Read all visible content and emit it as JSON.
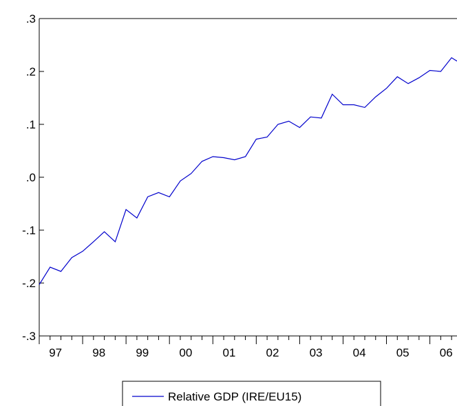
{
  "chart_data": {
    "type": "line",
    "title": "",
    "xlabel": "",
    "ylabel": "",
    "ylim": [
      -0.3,
      0.3
    ],
    "yticks": [
      {
        "value": 0.3,
        "label": ".3"
      },
      {
        "value": 0.2,
        "label": ".2"
      },
      {
        "value": 0.1,
        "label": ".1"
      },
      {
        "value": 0.0,
        "label": ".0"
      },
      {
        "value": -0.1,
        "label": "-.1"
      },
      {
        "value": -0.2,
        "label": "-.2"
      },
      {
        "value": -0.3,
        "label": "-.3"
      }
    ],
    "xrange": [
      1997.0,
      2006.625
    ],
    "xticks": [
      {
        "year": 1997,
        "label": "97"
      },
      {
        "year": 1998,
        "label": "98"
      },
      {
        "year": 1999,
        "label": "99"
      },
      {
        "year": 2000,
        "label": "00"
      },
      {
        "year": 2001,
        "label": "01"
      },
      {
        "year": 2002,
        "label": "02"
      },
      {
        "year": 2003,
        "label": "03"
      },
      {
        "year": 2004,
        "label": "04"
      },
      {
        "year": 2005,
        "label": "05"
      },
      {
        "year": 2006,
        "label": "06"
      }
    ],
    "x": [
      "1997Q1",
      "1997Q2",
      "1997Q3",
      "1997Q4",
      "1998Q1",
      "1998Q2",
      "1998Q3",
      "1998Q4",
      "1999Q1",
      "1999Q2",
      "1999Q3",
      "1999Q4",
      "2000Q1",
      "2000Q2",
      "2000Q3",
      "2000Q4",
      "2001Q1",
      "2001Q2",
      "2001Q3",
      "2001Q4",
      "2002Q1",
      "2002Q2",
      "2002Q3",
      "2002Q4",
      "2003Q1",
      "2003Q2",
      "2003Q3",
      "2003Q4",
      "2004Q1",
      "2004Q2",
      "2004Q3",
      "2004Q4",
      "2005Q1",
      "2005Q2",
      "2005Q3",
      "2005Q4",
      "2006Q1",
      "2006Q2",
      "2006Q3"
    ],
    "grid": false,
    "legend_position": "bottom-center",
    "series": [
      {
        "name": "Relative GDP  (IRE/EU15)",
        "color": "#0000cc",
        "values": [
          -0.203,
          -0.17,
          -0.178,
          -0.152,
          -0.14,
          -0.122,
          -0.103,
          -0.122,
          -0.061,
          -0.077,
          -0.037,
          -0.029,
          -0.037,
          -0.007,
          0.007,
          0.03,
          0.039,
          0.037,
          0.033,
          0.039,
          0.072,
          0.076,
          0.1,
          0.106,
          0.094,
          0.114,
          0.112,
          0.157,
          0.137,
          0.137,
          0.132,
          0.152,
          0.168,
          0.19,
          0.177,
          0.188,
          0.202,
          0.2,
          0.226
        ]
      }
    ],
    "tail_value": 0.213
  }
}
